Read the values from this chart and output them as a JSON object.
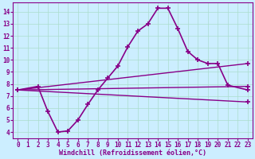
{
  "xlabel": "Windchill (Refroidissement éolien,°C)",
  "ylabel": "",
  "bg_color": "#cceeff",
  "grid_color": "#aaddcc",
  "line_color": "#880088",
  "xlim": [
    -0.5,
    23.5
  ],
  "ylim": [
    3.5,
    14.8
  ],
  "xticks": [
    0,
    1,
    2,
    3,
    4,
    5,
    6,
    7,
    8,
    9,
    10,
    11,
    12,
    13,
    14,
    15,
    16,
    17,
    18,
    19,
    20,
    21,
    22,
    23
  ],
  "yticks": [
    4,
    5,
    6,
    7,
    8,
    9,
    10,
    11,
    12,
    13,
    14
  ],
  "series": [
    {
      "x": [
        0,
        2,
        3,
        4,
        5,
        6,
        7,
        8,
        9,
        10,
        11,
        12,
        13,
        14,
        15,
        16,
        17,
        18,
        19,
        20,
        21,
        23
      ],
      "y": [
        7.5,
        7.8,
        5.7,
        4.0,
        4.1,
        5.0,
        6.3,
        7.5,
        8.5,
        9.5,
        11.1,
        12.4,
        13.0,
        14.3,
        14.3,
        12.6,
        10.7,
        10.0,
        9.7,
        9.7,
        7.9,
        7.5
      ],
      "marker": "+",
      "linewidth": 1.2,
      "markersize": 5,
      "has_endpoints": false
    },
    {
      "x": [
        0,
        23
      ],
      "y": [
        7.5,
        9.7
      ],
      "marker": "+",
      "linewidth": 1.0,
      "markersize": 5,
      "has_endpoints": true
    },
    {
      "x": [
        0,
        23
      ],
      "y": [
        7.5,
        7.8
      ],
      "marker": "+",
      "linewidth": 1.0,
      "markersize": 5,
      "has_endpoints": true
    },
    {
      "x": [
        0,
        23
      ],
      "y": [
        7.5,
        6.5
      ],
      "marker": "+",
      "linewidth": 1.0,
      "markersize": 5,
      "has_endpoints": true
    }
  ],
  "tick_fontsize": 5.5,
  "label_fontsize": 6.0,
  "title_fontsize": 7
}
